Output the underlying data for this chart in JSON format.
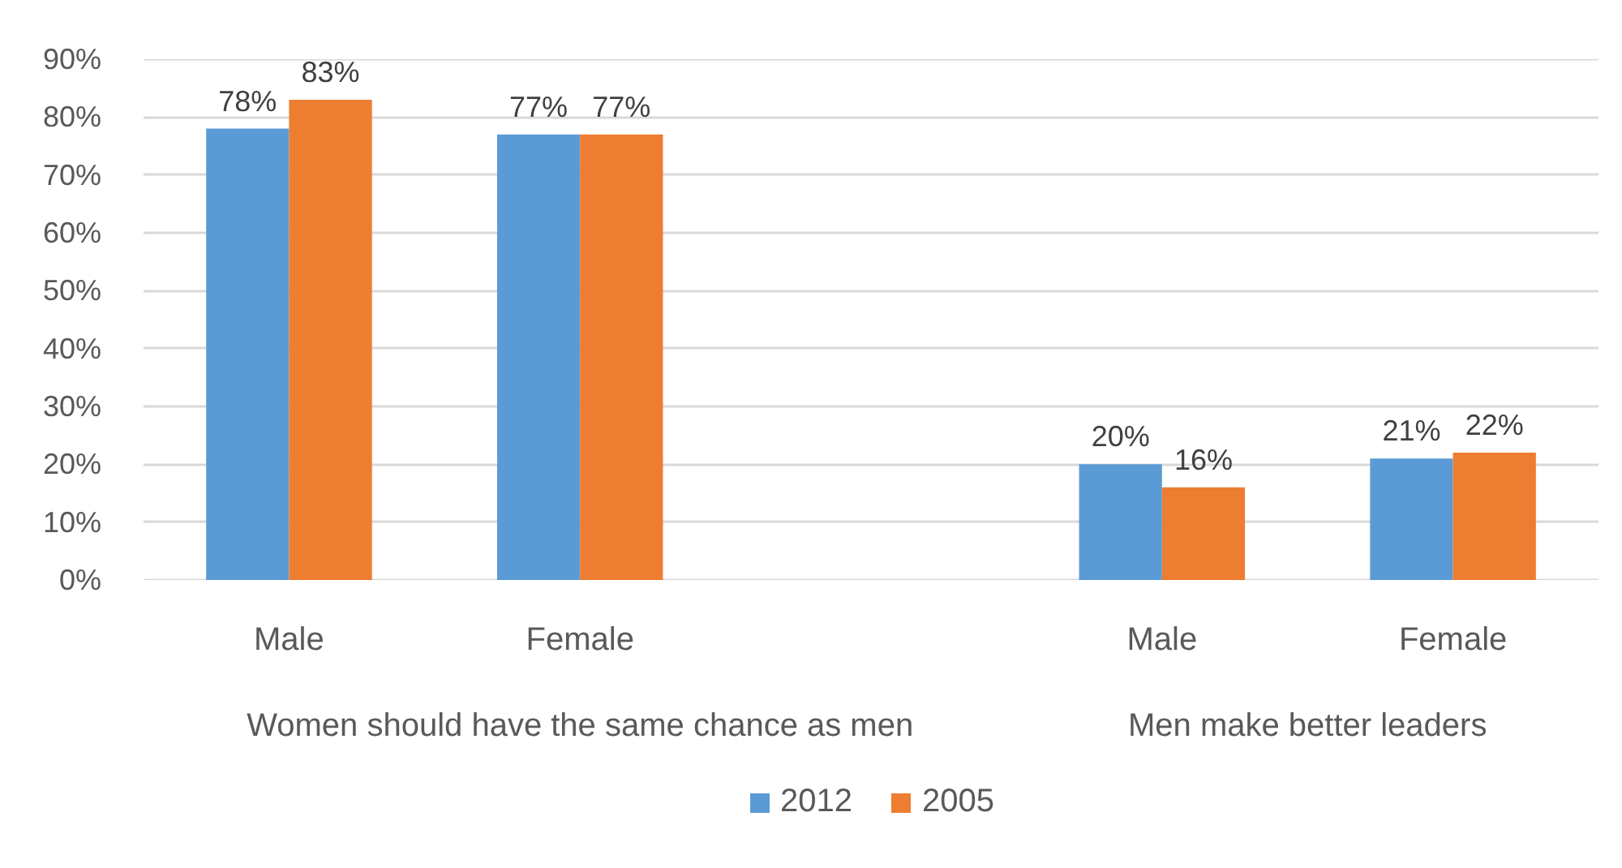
{
  "chart_data": {
    "type": "bar",
    "categories": [
      "Male",
      "Female",
      null,
      "Male",
      "Female"
    ],
    "series": [
      {
        "name": "2012",
        "color": "#5b9bd5",
        "values": [
          78,
          77,
          null,
          20,
          21
        ],
        "value_labels": [
          "78%",
          "77%",
          null,
          "20%",
          "21%"
        ]
      },
      {
        "name": "2005",
        "color": "#ed7d31",
        "values": [
          83,
          77,
          null,
          16,
          22
        ],
        "value_labels": [
          "83%",
          "77%",
          null,
          "16%",
          "22%"
        ]
      }
    ],
    "ylim": [
      0,
      90
    ],
    "yticks": [
      {
        "value": 0,
        "label": "0%"
      },
      {
        "value": 10,
        "label": "10%"
      },
      {
        "value": 20,
        "label": "20%"
      },
      {
        "value": 30,
        "label": "30%"
      },
      {
        "value": 40,
        "label": "40%"
      },
      {
        "value": 50,
        "label": "50%"
      },
      {
        "value": 60,
        "label": "60%"
      },
      {
        "value": 70,
        "label": "70%"
      },
      {
        "value": 80,
        "label": "80%"
      },
      {
        "value": 90,
        "label": "90%"
      }
    ],
    "grid": "y",
    "legend": "bottom",
    "annotations": [
      "Women should have the same chance as men",
      "Men make better leaders"
    ]
  }
}
